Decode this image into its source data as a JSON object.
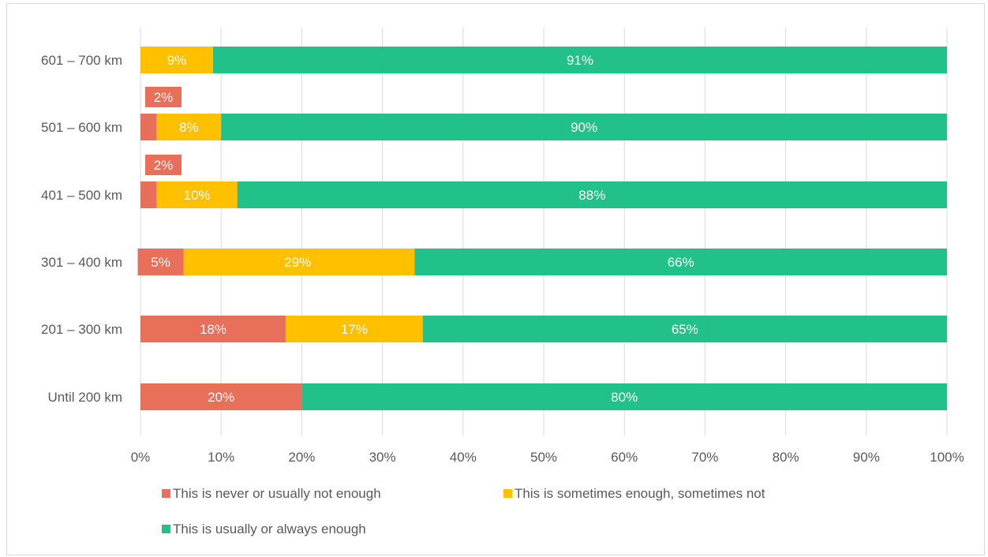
{
  "chart_data": {
    "type": "bar",
    "orientation": "horizontal",
    "stacked": "percent",
    "title": "",
    "xlabel": "",
    "ylabel": "",
    "xlim": [
      0,
      100
    ],
    "x_ticks": [
      "0%",
      "10%",
      "20%",
      "30%",
      "40%",
      "50%",
      "60%",
      "70%",
      "80%",
      "90%",
      "100%"
    ],
    "grid": "vertical",
    "legend_position": "bottom",
    "categories": [
      "601 – 700 km",
      "501 – 600 km",
      "401 – 500 km",
      "301 – 400 km",
      "201 – 300 km",
      "Until 200 km"
    ],
    "series": [
      {
        "name": "This is never or usually not enough",
        "color": "#E8705A",
        "values": [
          0,
          2,
          2,
          5,
          18,
          20
        ],
        "labels": [
          "",
          "2%",
          "2%",
          "5%",
          "18%",
          "20%"
        ],
        "label_placement": [
          "none",
          "above",
          "above",
          "inside",
          "inside",
          "inside"
        ]
      },
      {
        "name": "This is sometimes enough, sometimes not",
        "color": "#FFC000",
        "values": [
          9,
          8,
          10,
          29,
          17,
          0
        ],
        "labels": [
          "9%",
          "8%",
          "10%",
          "29%",
          "17%",
          ""
        ],
        "label_placement": [
          "inside",
          "inside",
          "inside",
          "inside",
          "inside",
          "none"
        ]
      },
      {
        "name": "This is usually or always enough",
        "color": "#21C189",
        "values": [
          91,
          90,
          88,
          66,
          65,
          80
        ],
        "labels": [
          "91%",
          "90%",
          "88%",
          "66%",
          "65%",
          "80%"
        ],
        "label_placement": [
          "inside",
          "inside",
          "inside",
          "inside",
          "inside",
          "inside"
        ]
      }
    ]
  }
}
